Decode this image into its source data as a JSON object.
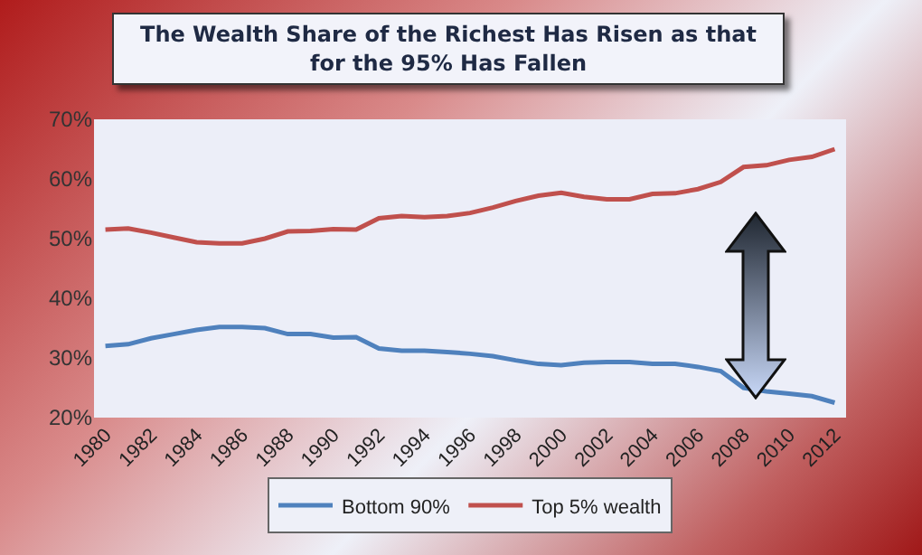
{
  "chart_data": {
    "type": "line",
    "title": "The Wealth Share of the Richest Has Risen as that for the 95% Has Fallen",
    "x": [
      1980,
      1981,
      1982,
      1983,
      1984,
      1985,
      1986,
      1987,
      1988,
      1989,
      1990,
      1991,
      1992,
      1993,
      1994,
      1995,
      1996,
      1997,
      1998,
      1999,
      2000,
      2001,
      2002,
      2003,
      2004,
      2005,
      2006,
      2007,
      2008,
      2009,
      2010,
      2011,
      2012
    ],
    "series": [
      {
        "name": "Bottom 90%",
        "color": "#4f81bd",
        "values": [
          32,
          32.3,
          33.3,
          34,
          34.7,
          35.2,
          35.2,
          35,
          34,
          34,
          33.4,
          33.5,
          31.6,
          31.2,
          31.2,
          31,
          30.7,
          30.3,
          29.6,
          29,
          28.8,
          29.2,
          29.3,
          29.3,
          29,
          29,
          28.5,
          27.8,
          25,
          24.4,
          24,
          23.6,
          22.5
        ]
      },
      {
        "name": "Top 5% wealth",
        "color": "#c0504d",
        "values": [
          51.5,
          51.7,
          51,
          50.2,
          49.4,
          49.2,
          49.2,
          50,
          51.2,
          51.3,
          51.6,
          51.5,
          53.4,
          53.8,
          53.6,
          53.8,
          54.3,
          55.2,
          56.3,
          57.2,
          57.7,
          57,
          56.6,
          56.6,
          57.5,
          57.6,
          58.3,
          59.5,
          62,
          62.3,
          63.2,
          63.7,
          65
        ]
      }
    ],
    "xlim": [
      1979.5,
      2012.5
    ],
    "xticks": [
      1980,
      1982,
      1984,
      1986,
      1988,
      1990,
      1992,
      1994,
      1996,
      1998,
      2000,
      2002,
      2004,
      2006,
      2008,
      2010,
      2012
    ],
    "ylim": [
      20,
      70
    ],
    "yticks": [
      {
        "value": 20,
        "label": "20%"
      },
      {
        "value": 30,
        "label": "30%"
      },
      {
        "value": 40,
        "label": "40%"
      },
      {
        "value": 50,
        "label": "50%"
      },
      {
        "value": 60,
        "label": "60%"
      },
      {
        "value": 70,
        "label": "70%"
      }
    ],
    "grid": false,
    "legend": "bottom",
    "marker": "none",
    "line_style": "solid"
  }
}
